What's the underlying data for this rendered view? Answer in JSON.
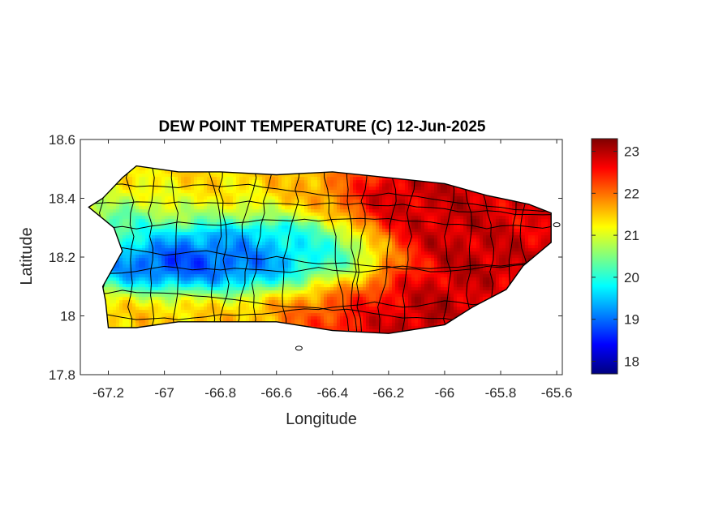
{
  "title": "DEW POINT TEMPERATURE (C) 12-Jun-2025",
  "axes": {
    "xlabel": "Longitude",
    "ylabel": "Latitude",
    "xlim": [
      -67.3,
      -65.58
    ],
    "ylim": [
      17.8,
      18.6
    ],
    "xticks": [
      -67.2,
      -67,
      -66.8,
      -66.6,
      -66.4,
      -66.2,
      -66,
      -65.8,
      -65.6
    ],
    "xtick_labels": [
      "-67.2",
      "-67",
      "-66.8",
      "-66.6",
      "-66.4",
      "-66.2",
      "-66",
      "-65.8",
      "-65.6"
    ],
    "yticks": [
      17.8,
      18,
      18.2,
      18.4,
      18.6
    ],
    "ytick_labels": [
      "17.8",
      "18",
      "18.2",
      "18.4",
      "18.6"
    ]
  },
  "colorbar": {
    "colormap": "jet",
    "clim": [
      17.7,
      23.3
    ],
    "ticks": [
      18,
      19,
      20,
      21,
      22,
      23
    ],
    "tick_labels": [
      "18",
      "19",
      "20",
      "21",
      "22",
      "23"
    ],
    "colors": [
      "#00007f",
      "#0000ff",
      "#0080ff",
      "#00ffff",
      "#80ff80",
      "#ffff00",
      "#ff8000",
      "#ff0000",
      "#7f0000"
    ]
  },
  "map": {
    "region": "Puerto Rico",
    "variable": "dew point temperature (C)",
    "outline": [
      [
        -67.27,
        18.37
      ],
      [
        -67.22,
        18.4
      ],
      [
        -67.15,
        18.47
      ],
      [
        -67.1,
        18.51
      ],
      [
        -66.95,
        18.49
      ],
      [
        -66.8,
        18.49
      ],
      [
        -66.6,
        18.48
      ],
      [
        -66.4,
        18.49
      ],
      [
        -66.2,
        18.47
      ],
      [
        -66.0,
        18.45
      ],
      [
        -65.85,
        18.41
      ],
      [
        -65.7,
        18.38
      ],
      [
        -65.62,
        18.35
      ],
      [
        -65.62,
        18.25
      ],
      [
        -65.72,
        18.17
      ],
      [
        -65.78,
        18.09
      ],
      [
        -65.9,
        18.03
      ],
      [
        -66.0,
        17.97
      ],
      [
        -66.2,
        17.94
      ],
      [
        -66.4,
        17.95
      ],
      [
        -66.6,
        17.98
      ],
      [
        -66.8,
        17.98
      ],
      [
        -66.95,
        17.98
      ],
      [
        -67.1,
        17.96
      ],
      [
        -67.2,
        17.96
      ],
      [
        -67.21,
        18.05
      ],
      [
        -67.22,
        18.1
      ],
      [
        -67.15,
        18.22
      ],
      [
        -67.18,
        18.3
      ],
      [
        -67.27,
        18.37
      ]
    ],
    "small_islands": [
      {
        "name": "Caja de Muertos",
        "lon": -66.52,
        "lat": 17.89
      },
      {
        "name": "Culebra fragment",
        "lon": -65.6,
        "lat": 18.31
      }
    ],
    "field_sources": [
      {
        "lon": -67.05,
        "lat": 18.17,
        "value": 17.8,
        "spread_lon": 0.14,
        "spread_lat": 0.05
      },
      {
        "lon": -66.85,
        "lat": 18.16,
        "value": 18.2,
        "spread_lon": 0.18,
        "spread_lat": 0.05
      },
      {
        "lon": -66.6,
        "lat": 18.18,
        "value": 18.4,
        "spread_lon": 0.18,
        "spread_lat": 0.05
      },
      {
        "lon": -66.75,
        "lat": 18.24,
        "value": 19.6,
        "spread_lon": 0.26,
        "spread_lat": 0.08
      },
      {
        "lon": -66.45,
        "lat": 18.22,
        "value": 19.8,
        "spread_lon": 0.12,
        "spread_lat": 0.06
      },
      {
        "lon": -67.15,
        "lat": 18.28,
        "value": 20.5,
        "spread_lon": 0.1,
        "spread_lat": 0.1
      },
      {
        "lon": -66.95,
        "lat": 18.05,
        "value": 21.5,
        "spread_lon": 0.3,
        "spread_lat": 0.08
      },
      {
        "lon": -66.4,
        "lat": 18.1,
        "value": 21.8,
        "spread_lon": 0.15,
        "spread_lat": 0.1
      },
      {
        "lon": -65.85,
        "lat": 18.25,
        "value": 23.0,
        "spread_lon": 0.25,
        "spread_lat": 0.2
      },
      {
        "lon": -66.05,
        "lat": 18.4,
        "value": 22.8,
        "spread_lon": 0.25,
        "spread_lat": 0.1
      },
      {
        "lon": -66.2,
        "lat": 18.0,
        "value": 23.0,
        "spread_lon": 0.2,
        "spread_lat": 0.08
      },
      {
        "lon": -65.7,
        "lat": 18.35,
        "value": 22.5,
        "spread_lon": 0.1,
        "spread_lat": 0.1
      }
    ],
    "background_value": 21.4
  }
}
